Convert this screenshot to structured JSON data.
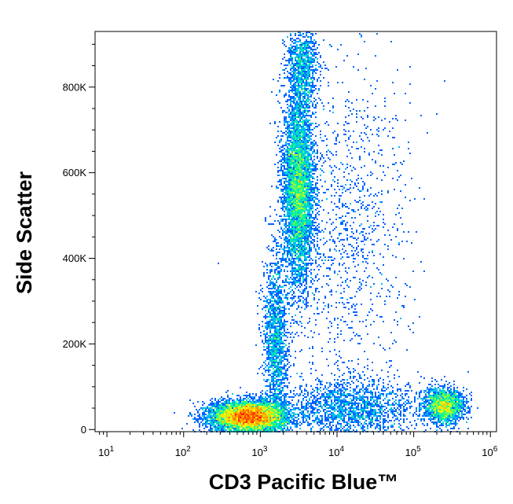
{
  "chart_data": {
    "type": "heatmap",
    "subtype": "flow-cytometry-density-dot-plot",
    "xlabel": "CD3 Pacific Blue™",
    "ylabel": "Side Scatter",
    "x_scale": "log",
    "xlim": [
      7,
      1200000
    ],
    "ylim": [
      -5000,
      930000
    ],
    "x_ticks": [
      {
        "value": 10,
        "base": "10",
        "exp": "1"
      },
      {
        "value": 100,
        "base": "10",
        "exp": "2"
      },
      {
        "value": 1000,
        "base": "10",
        "exp": "3"
      },
      {
        "value": 10000,
        "base": "10",
        "exp": "4"
      },
      {
        "value": 100000,
        "base": "10",
        "exp": "5"
      },
      {
        "value": 1000000,
        "base": "10",
        "exp": "6"
      }
    ],
    "y_ticks": [
      {
        "value": 0,
        "label": "0"
      },
      {
        "value": 200000,
        "label": "200K"
      },
      {
        "value": 400000,
        "label": "400K"
      },
      {
        "value": 600000,
        "label": "600K"
      },
      {
        "value": 800000,
        "label": "800K"
      }
    ],
    "grid": false,
    "colormap": [
      "#0000ff",
      "#00b4ff",
      "#00ff90",
      "#ffff00",
      "#ff8000",
      "#ff0000"
    ],
    "populations": [
      {
        "log10_x_center": 2.85,
        "y_center": 30000,
        "log10_x_spread": 0.24,
        "y_spread": 18000,
        "weight": 0.36
      },
      {
        "log10_x_center": 3.5,
        "y_center": 560000,
        "log10_x_spread": 0.1,
        "y_spread": 110000,
        "weight": 0.26
      },
      {
        "log10_x_center": 5.4,
        "y_center": 55000,
        "log10_x_spread": 0.13,
        "y_spread": 20000,
        "weight": 0.1
      },
      {
        "log10_x_center": 4.2,
        "y_center": 50000,
        "log10_x_spread": 0.45,
        "y_spread": 35000,
        "weight": 0.09
      },
      {
        "log10_x_center": 3.2,
        "y_center": 200000,
        "log10_x_spread": 0.08,
        "y_spread": 110000,
        "weight": 0.08
      },
      {
        "log10_x_center": 4.1,
        "y_center": 450000,
        "log10_x_spread": 0.4,
        "y_spread": 200000,
        "weight": 0.06
      },
      {
        "log10_x_center": 3.55,
        "y_center": 850000,
        "log10_x_spread": 0.1,
        "y_spread": 50000,
        "weight": 0.05
      }
    ]
  }
}
